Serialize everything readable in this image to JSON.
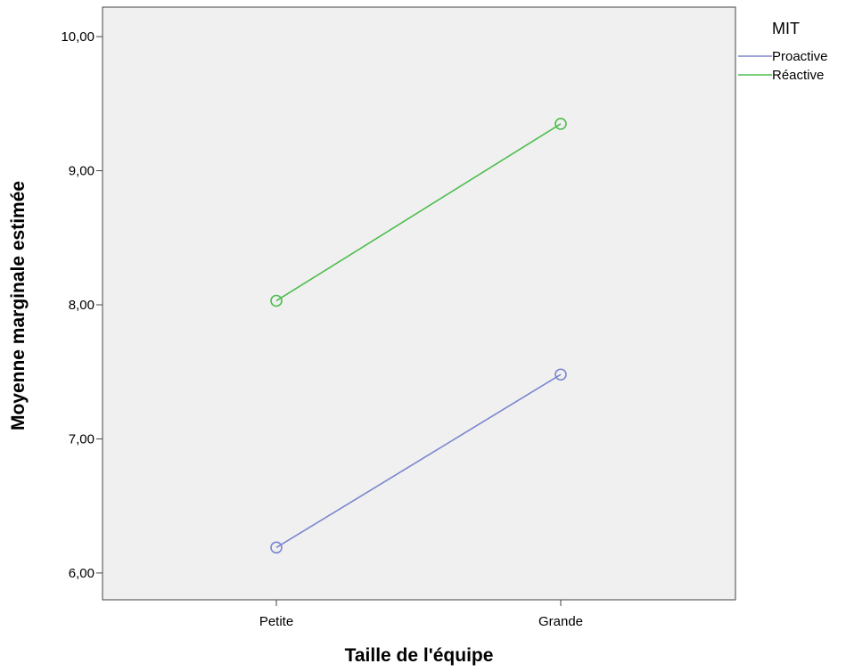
{
  "chart_data": {
    "type": "line",
    "xlabel": "Taille de l'équipe",
    "ylabel": "Moyenne marginale estimée",
    "categories": [
      "Petite",
      "Grande"
    ],
    "ylim": [
      5.8,
      10.22
    ],
    "yticks": [
      6,
      7,
      8,
      9,
      10
    ],
    "ytick_labels": [
      "6,00",
      "7,00",
      "8,00",
      "9,00",
      "10,00"
    ],
    "grid": false,
    "plot_background": "#f0f0f0",
    "legend": {
      "title": "MIT",
      "placement": "right"
    },
    "series": [
      {
        "name": "Proactive",
        "color": "#7b86cf",
        "values": [
          6.19,
          7.48
        ]
      },
      {
        "name": "Réactive",
        "color": "#4dbd4d",
        "values": [
          8.03,
          9.35
        ]
      }
    ]
  }
}
